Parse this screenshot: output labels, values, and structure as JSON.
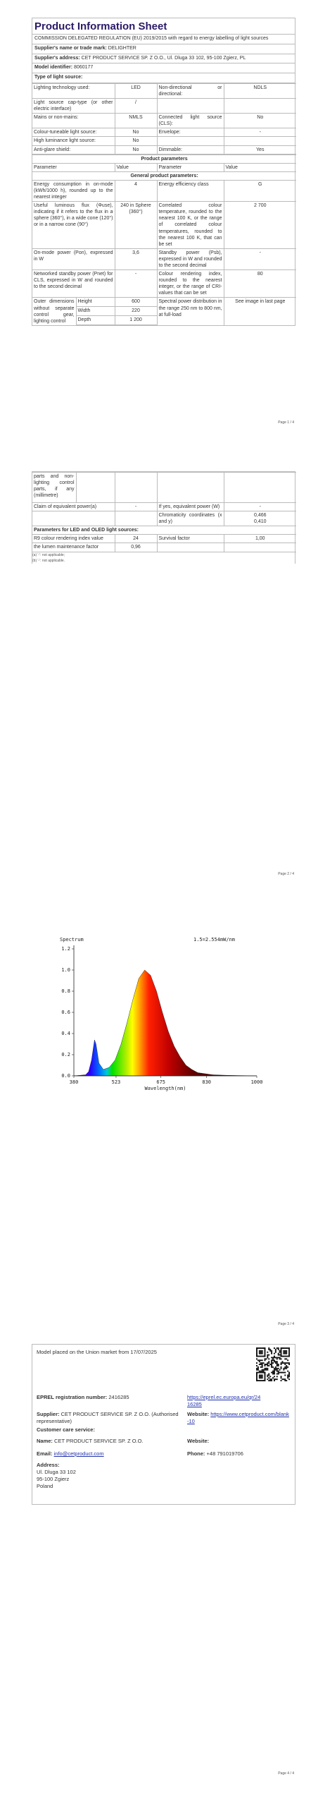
{
  "page1": {
    "title": "Product Information Sheet",
    "regulation": "COMMISSION DELEGATED REGULATION (EU) 2019/2015 with regard to energy labelling of light sources",
    "fields": [
      {
        "label": "Supplier's name or trade mark:",
        "value": "DELIGHTER"
      },
      {
        "label": "Supplier's address:",
        "value": "CET PRODUCT SERVICE SP. Z O.O., Ul. Dluga 33 102, 95-100 Zgierz, PL"
      },
      {
        "label": "Model identifier:",
        "value": "8060177"
      }
    ],
    "type_label": "Type of light source:",
    "light_source": [
      [
        "Lighting technology used:",
        "LED",
        "Non-directional or directional:",
        "NDLS"
      ],
      [
        "Light source cap-type (or other electric interface)",
        "/",
        null,
        null
      ],
      [
        "Mains or non-mains:",
        "NMLS",
        "Connected light source (CLS):",
        "No"
      ],
      [
        "Colour-tuneable light source:",
        "No",
        "Envelope:",
        "-"
      ],
      [
        "High luminance light source:",
        "No",
        null,
        null
      ],
      [
        "Anti-glare shield:",
        "No",
        "Dimmable:",
        "Yes"
      ]
    ],
    "params_title": "Product parameters",
    "params_header": [
      "Parameter",
      "Value",
      "Parameter",
      "Value"
    ],
    "general_section": "General product parameters:",
    "params_rows": [
      [
        "Energy consumption in on-mode (kWh/1000 h), rounded up to the nearest integer",
        "4",
        "Energy efficiency class",
        "G"
      ],
      [
        "Useful luminous flux (Φuse), indicating if it refers to the flux in a sphere (360°), in a wide cone (120°) or in a narrow cone (90°)",
        "240 in Sphere (360°)",
        "Correlated colour temperature, rounded to the nearest 100 K, or the range of correlated colour temperatures, rounded to the nearest 100 K, that can be set",
        "2 700"
      ],
      [
        "On-mode power (Pon), expressed in W",
        "3,6",
        "Standby power (Psb), expressed in W and rounded to the second decimal",
        "-"
      ],
      [
        "Networked standby power (Pnet) for CLS, expressed in W and rounded to the second decimal",
        "-",
        "Colour rendering index, rounded to the nearest integer, or the range of CRI-values that can be set",
        "80"
      ]
    ],
    "outer_label": "Outer dimensions without separate control gear, lighting control",
    "dims": [
      [
        "Height",
        "600"
      ],
      [
        "Width",
        "220"
      ],
      [
        "Depth",
        "1 200"
      ]
    ],
    "outer_param": "Spectral power distribution in the range 250 nm to 800 nm, at full-load",
    "outer_value": "See image in last page"
  },
  "page2": {
    "outer_label_cont": "parts and non-lighting control parts, if any (millimetre)",
    "rows": [
      [
        "Claim of equivalent power(a)",
        "-",
        "If yes, equivalent power (W)",
        "-"
      ],
      [
        null,
        null,
        "Chromaticity coordinates (x and y)",
        [
          "0,466",
          "0,410"
        ]
      ]
    ],
    "led_section": "Parameters for LED and OLED light sources:",
    "led_rows": [
      [
        "R9 colour rendering index value",
        "24",
        "Survival factor",
        "1,00"
      ],
      [
        "the lumen maintenance factor",
        "0,96",
        null,
        null
      ]
    ],
    "footnotes": [
      "(a) '-': not applicable;",
      "(b) '-': not applicable."
    ]
  },
  "chart_data": {
    "type": "area",
    "title": "Spectrum",
    "subtitle": "1.5=2.554mW/nm",
    "x_label": "Wavelength(nm)",
    "x": [
      380,
      420,
      430,
      440,
      450,
      455,
      465,
      480,
      500,
      520,
      540,
      560,
      580,
      600,
      620,
      640,
      660,
      680,
      700,
      720,
      740,
      760,
      780,
      800,
      850,
      900,
      1000
    ],
    "values": [
      0,
      0.01,
      0.04,
      0.15,
      0.34,
      0.3,
      0.12,
      0.06,
      0.08,
      0.15,
      0.3,
      0.5,
      0.72,
      0.92,
      1.0,
      0.95,
      0.8,
      0.6,
      0.42,
      0.28,
      0.18,
      0.1,
      0.06,
      0.03,
      0.01,
      0.005,
      0
    ],
    "xlim": [
      380,
      1000
    ],
    "xticks": [
      380,
      523,
      675,
      830,
      1000
    ],
    "ylim": [
      0,
      1.2
    ],
    "yticks": [
      {
        "value": 0,
        "label": "0.0"
      },
      {
        "value": 0.2,
        "label": "0.2"
      },
      {
        "value": 0.4,
        "label": "0.4"
      },
      {
        "value": 0.6,
        "label": "0.6"
      },
      {
        "value": 0.8,
        "label": "0.8"
      },
      {
        "value": 1,
        "label": "1.0"
      },
      {
        "value": 1.2,
        "label": "1.2"
      }
    ]
  },
  "page4": {
    "placed": "Model placed on the Union market from 17/07/2025",
    "eprel": {
      "label": "EPREL registration number:",
      "value": "2416285"
    },
    "eprel_link": "https://eprel.ec.europa.eu/qr/2416285",
    "supplier": {
      "label": "Supplier:",
      "value": "CET PRODUCT SERVICE SP. Z O.O. (Authorised representative)"
    },
    "website": {
      "label": "Website:",
      "value": "https://www.cetproduct.com/blank-10"
    },
    "care": "Customer care service:",
    "name": {
      "label": "Name:",
      "value": "CET PRODUCT SERVICE SP. Z O.O."
    },
    "care_website": {
      "label": "Website:"
    },
    "email": {
      "label": "Email:",
      "value": "info@cetproduct.com"
    },
    "phone": {
      "label": "Phone:",
      "value": "+48 791019706"
    },
    "address": {
      "label": "Address:",
      "lines": [
        "Ul. Dluga 33 102",
        "95-100 Zgierz",
        "Poland"
      ]
    }
  },
  "page_labels": [
    "Page 1 / 4",
    "Page 2 / 4",
    "Page 3 / 4",
    "Page 4 / 4"
  ]
}
